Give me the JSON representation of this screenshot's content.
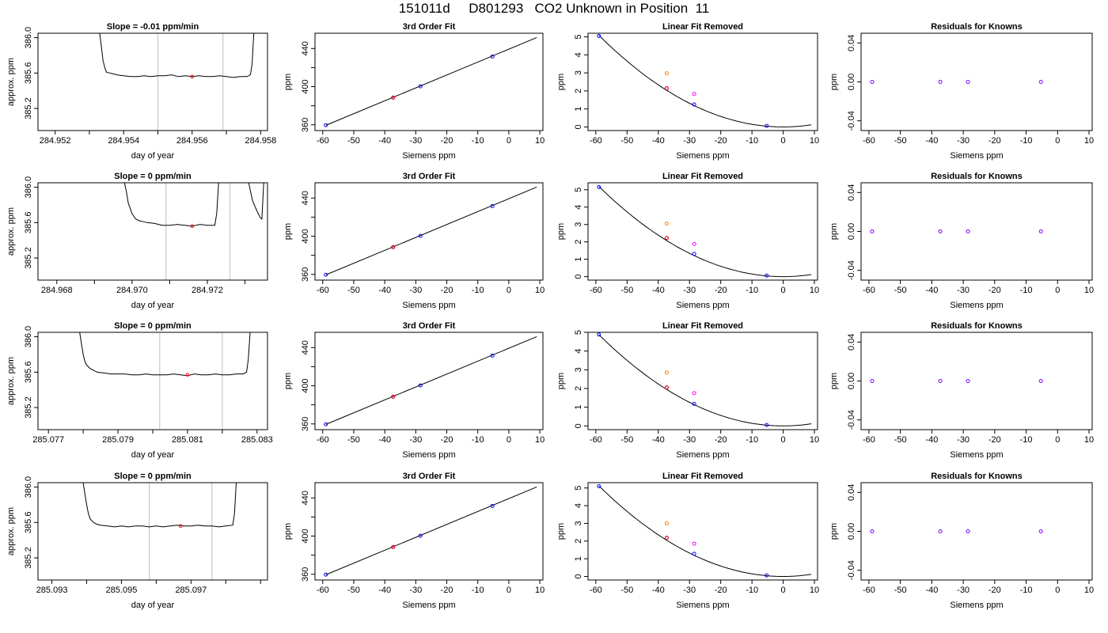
{
  "title": "151011d     D801293   CO2 Unknown in Position  11",
  "colors": {
    "known": "#0000ff",
    "unknown": "#ff0000",
    "orange": "#ff8000",
    "magenta": "#ff00ff",
    "residual": "#8000ff",
    "vline": "#c8c8c8"
  },
  "chart_data": [
    {
      "type": "line",
      "title": "Slope =  -0.01  ppm/min",
      "xlabel": "day of year",
      "ylabel": "approx. ppm",
      "xlim": [
        284.9515,
        284.9582
      ],
      "ylim": [
        384.95,
        386.05
      ],
      "xticks": [
        284.952,
        284.953,
        284.954,
        284.955,
        284.956,
        284.957,
        284.958
      ],
      "xtick_labels": [
        "284.952",
        "",
        "284.954",
        "",
        "284.956",
        "",
        "284.958"
      ],
      "yticks": [
        385.2,
        385.6,
        386.0
      ],
      "ytick_labels": [
        "385.2",
        "385.6",
        "386.0"
      ],
      "vlines": [
        284.955,
        284.9569
      ],
      "x": [
        284.9533,
        284.95335,
        284.9534,
        284.95345,
        284.9535,
        284.9536,
        284.9537,
        284.9538,
        284.954,
        284.9542,
        284.9544,
        284.9546,
        284.9548,
        284.955,
        284.9552,
        284.9554,
        284.9556,
        284.9558,
        284.956,
        284.9562,
        284.9564,
        284.9566,
        284.9568,
        284.957,
        284.9572,
        284.9574,
        284.9576,
        284.9577,
        284.95775,
        284.9578
      ],
      "y": [
        386.05,
        385.9,
        385.74,
        385.66,
        385.61,
        385.6,
        385.59,
        385.58,
        385.57,
        385.56,
        385.56,
        385.57,
        385.56,
        385.57,
        385.57,
        385.58,
        385.56,
        385.57,
        385.56,
        385.57,
        385.56,
        385.56,
        385.57,
        385.56,
        385.55,
        385.56,
        385.56,
        385.58,
        385.7,
        386.05
      ],
      "marker": {
        "x": 284.956,
        "y": 385.56
      }
    },
    {
      "type": "line",
      "title": "Slope =  0  ppm/min",
      "xlabel": "day of year",
      "ylabel": "approx. ppm",
      "xlim": [
        284.9675,
        284.9736
      ],
      "ylim": [
        384.95,
        386.05
      ],
      "xticks": [
        284.968,
        284.969,
        284.97,
        284.971,
        284.972,
        284.973
      ],
      "xtick_labels": [
        "284.968",
        "",
        "284.970",
        "",
        "284.972",
        ""
      ],
      "yticks": [
        385.2,
        385.6,
        386.0
      ],
      "ytick_labels": [
        "385.2",
        "385.6",
        "386.0"
      ],
      "vlines": [
        284.9709,
        284.9726
      ],
      "x": [
        284.9698,
        284.96985,
        284.9699,
        284.97,
        284.9701,
        284.9702,
        284.9703,
        284.9704,
        284.9706,
        284.9708,
        284.971,
        284.9712,
        284.9714,
        284.9716,
        284.9718,
        284.972,
        284.9722,
        284.97225,
        284.9723
      ],
      "y": [
        386.05,
        385.95,
        385.82,
        385.7,
        385.64,
        385.62,
        385.61,
        385.6,
        385.59,
        385.57,
        385.57,
        385.58,
        385.57,
        385.56,
        385.58,
        385.57,
        385.57,
        385.7,
        386.05
      ],
      "x2": [
        284.9731,
        284.97315,
        284.9732,
        284.9733,
        284.9734,
        284.97345,
        284.9735
      ],
      "y2": [
        386.05,
        385.95,
        385.85,
        385.75,
        385.66,
        385.64,
        386.05
      ],
      "marker": {
        "x": 284.9716,
        "y": 385.56
      }
    },
    {
      "type": "line",
      "title": "Slope =  0  ppm/min",
      "xlabel": "day of year",
      "ylabel": "approx. ppm",
      "xlim": [
        285.0767,
        285.0833
      ],
      "ylim": [
        384.95,
        386.05
      ],
      "xticks": [
        285.077,
        285.078,
        285.079,
        285.08,
        285.081,
        285.082,
        285.083
      ],
      "xtick_labels": [
        "285.077",
        "",
        "285.079",
        "",
        "285.081",
        "",
        "285.083"
      ],
      "yticks": [
        385.2,
        385.6,
        386.0
      ],
      "ytick_labels": [
        "385.2",
        "385.6",
        "386.0"
      ],
      "vlines": [
        285.0802,
        285.082
      ],
      "x": [
        285.0779,
        285.07795,
        285.078,
        285.07805,
        285.0781,
        285.0782,
        285.0783,
        285.0784,
        285.0786,
        285.0788,
        285.079,
        285.0792,
        285.0794,
        285.0796,
        285.0798,
        285.08,
        285.0802,
        285.0804,
        285.0806,
        285.0808,
        285.081,
        285.0812,
        285.0814,
        285.0816,
        285.0818,
        285.082,
        285.0822,
        285.0824,
        285.0826,
        285.0827,
        285.08275,
        285.0828
      ],
      "y": [
        386.05,
        385.92,
        385.8,
        385.72,
        385.68,
        385.64,
        385.62,
        385.6,
        385.59,
        385.58,
        385.58,
        385.58,
        385.57,
        385.57,
        385.58,
        385.57,
        385.57,
        385.57,
        385.58,
        385.57,
        385.56,
        385.58,
        385.57,
        385.57,
        385.58,
        385.57,
        385.57,
        385.58,
        385.58,
        385.6,
        385.75,
        386.05
      ],
      "marker": {
        "x": 285.081,
        "y": 385.57
      }
    },
    {
      "type": "line",
      "title": "Slope =  0  ppm/min",
      "xlabel": "day of year",
      "ylabel": "approx. ppm",
      "xlim": [
        285.0926,
        285.0992
      ],
      "ylim": [
        384.95,
        386.05
      ],
      "xticks": [
        285.093,
        285.094,
        285.095,
        285.096,
        285.097,
        285.098,
        285.099
      ],
      "xtick_labels": [
        "285.093",
        "",
        "285.095",
        "",
        "285.097",
        "",
        ""
      ],
      "yticks": [
        385.2,
        385.6,
        386.0
      ],
      "ytick_labels": [
        "385.2",
        "385.6",
        "386.0"
      ],
      "vlines": [
        285.0958,
        285.0976
      ],
      "x": [
        285.0939,
        285.09395,
        285.094,
        285.09405,
        285.0941,
        285.0942,
        285.0943,
        285.0944,
        285.0946,
        285.0948,
        285.095,
        285.0952,
        285.0954,
        285.0956,
        285.0958,
        285.096,
        285.0962,
        285.0964,
        285.0966,
        285.0968,
        285.097,
        285.0972,
        285.0974,
        285.0976,
        285.0978,
        285.098,
        285.0982,
        285.09825,
        285.0983
      ],
      "y": [
        386.05,
        385.92,
        385.8,
        385.7,
        385.64,
        385.6,
        385.58,
        385.57,
        385.56,
        385.55,
        385.56,
        385.55,
        385.56,
        385.56,
        385.55,
        385.56,
        385.55,
        385.56,
        385.57,
        385.56,
        385.56,
        385.57,
        385.56,
        385.56,
        385.55,
        385.56,
        385.57,
        385.7,
        386.05
      ],
      "marker": {
        "x": 285.0967,
        "y": 385.56
      }
    },
    {
      "type": "scatter",
      "title": "3rd Order Fit",
      "xlabel": "Siemens ppm",
      "ylabel": "ppm",
      "xlim": [
        -62.5,
        11
      ],
      "ylim": [
        354,
        456
      ],
      "xticks": [
        -60,
        -50,
        -40,
        -30,
        -20,
        -10,
        0,
        10
      ],
      "yticks": [
        360,
        380,
        400,
        420,
        440
      ],
      "ytick_labels": [
        "360",
        "",
        "400",
        "",
        "440"
      ],
      "fit_line": {
        "x": [
          -59,
          9
        ],
        "y": [
          359.5,
          451.5
        ]
      },
      "known_points": {
        "x": [
          -59,
          -37.3,
          -28.5,
          -5.3
        ],
        "y": [
          359.6,
          388.5,
          400.3,
          431.5
        ]
      },
      "unknown_point": {
        "x": -37.3,
        "y": 388.5
      }
    },
    {
      "type": "scatter",
      "title": "3rd Order Fit",
      "xlabel": "Siemens ppm",
      "ylabel": "ppm",
      "xlim": [
        -62.5,
        11
      ],
      "ylim": [
        354,
        456
      ],
      "xticks": [
        -60,
        -50,
        -40,
        -30,
        -20,
        -10,
        0,
        10
      ],
      "yticks": [
        360,
        380,
        400,
        420,
        440
      ],
      "ytick_labels": [
        "360",
        "",
        "400",
        "",
        "440"
      ],
      "fit_line": {
        "x": [
          -59,
          9
        ],
        "y": [
          359.5,
          451.5
        ]
      },
      "known_points": {
        "x": [
          -59,
          -37.3,
          -28.5,
          -5.3
        ],
        "y": [
          359.6,
          388.5,
          400.3,
          431.5
        ]
      },
      "unknown_point": {
        "x": -37.3,
        "y": 388.5
      }
    },
    {
      "type": "scatter",
      "title": "3rd Order Fit",
      "xlabel": "Siemens ppm",
      "ylabel": "ppm",
      "xlim": [
        -62.5,
        11
      ],
      "ylim": [
        354,
        456
      ],
      "xticks": [
        -60,
        -50,
        -40,
        -30,
        -20,
        -10,
        0,
        10
      ],
      "yticks": [
        360,
        380,
        400,
        420,
        440
      ],
      "ytick_labels": [
        "360",
        "",
        "400",
        "",
        "440"
      ],
      "fit_line": {
        "x": [
          -59,
          9
        ],
        "y": [
          359.5,
          451.5
        ]
      },
      "known_points": {
        "x": [
          -59,
          -37.3,
          -28.5,
          -5.3
        ],
        "y": [
          359.6,
          388.5,
          400.3,
          431.5
        ]
      },
      "unknown_point": {
        "x": -37.3,
        "y": 388.5
      }
    },
    {
      "type": "scatter",
      "title": "3rd Order Fit",
      "xlabel": "Siemens ppm",
      "ylabel": "ppm",
      "xlim": [
        -62.5,
        11
      ],
      "ylim": [
        354,
        456
      ],
      "xticks": [
        -60,
        -50,
        -40,
        -30,
        -20,
        -10,
        0,
        10
      ],
      "yticks": [
        360,
        380,
        400,
        420,
        440
      ],
      "ytick_labels": [
        "360",
        "",
        "400",
        "",
        "440"
      ],
      "fit_line": {
        "x": [
          -59,
          9
        ],
        "y": [
          359.5,
          451.5
        ]
      },
      "known_points": {
        "x": [
          -59,
          -37.3,
          -28.5,
          -5.3
        ],
        "y": [
          359.6,
          388.5,
          400.3,
          431.5
        ]
      },
      "unknown_point": {
        "x": -37.3,
        "y": 388.5
      }
    },
    {
      "type": "scatter",
      "title": "Linear Fit Removed",
      "xlabel": "Siemens ppm",
      "ylabel": "ppm",
      "xlim": [
        -62.5,
        11
      ],
      "ylim": [
        -0.2,
        5.2
      ],
      "xticks": [
        -60,
        -50,
        -40,
        -30,
        -20,
        -10,
        0,
        10
      ],
      "yticks": [
        0,
        1,
        2,
        3,
        4,
        5
      ],
      "curve": {
        "x0": 0,
        "y0": 0,
        "a": 0.00146
      },
      "known_points": {
        "x": [
          -59,
          -37.3,
          -28.5,
          -5.3
        ],
        "y": [
          5.05,
          2.15,
          1.25,
          0.06
        ]
      },
      "orange_point": {
        "x": -37.3,
        "y": 2.98
      },
      "magenta_point": {
        "x": -28.5,
        "y": 1.83
      },
      "unknown_point": {
        "x": -37.3,
        "y": 2.15
      }
    },
    {
      "type": "scatter",
      "title": "Linear Fit Removed",
      "xlabel": "Siemens ppm",
      "ylabel": "ppm",
      "xlim": [
        -62.5,
        11
      ],
      "ylim": [
        -0.2,
        5.4
      ],
      "xticks": [
        -60,
        -50,
        -40,
        -30,
        -20,
        -10,
        0,
        10
      ],
      "yticks": [
        0,
        1,
        2,
        3,
        4,
        5
      ],
      "curve": {
        "x0": 0,
        "y0": 0,
        "a": 0.00149
      },
      "known_points": {
        "x": [
          -59,
          -37.3,
          -28.5,
          -5.3
        ],
        "y": [
          5.15,
          2.22,
          1.31,
          0.06
        ]
      },
      "orange_point": {
        "x": -37.3,
        "y": 3.05
      },
      "magenta_point": {
        "x": -28.5,
        "y": 1.88
      },
      "unknown_point": {
        "x": -37.3,
        "y": 2.22
      }
    },
    {
      "type": "scatter",
      "title": "Linear Fit Removed",
      "xlabel": "Siemens ppm",
      "ylabel": "ppm",
      "xlim": [
        -62.5,
        11
      ],
      "ylim": [
        -0.2,
        5.0
      ],
      "xticks": [
        -60,
        -50,
        -40,
        -30,
        -20,
        -10,
        0,
        10
      ],
      "yticks": [
        0,
        1,
        2,
        3,
        4,
        5
      ],
      "curve": {
        "x0": 0,
        "y0": 0,
        "a": 0.0014
      },
      "known_points": {
        "x": [
          -59,
          -37.3,
          -28.5,
          -5.3
        ],
        "y": [
          4.88,
          2.05,
          1.18,
          0.05
        ]
      },
      "orange_point": {
        "x": -37.3,
        "y": 2.85
      },
      "magenta_point": {
        "x": -28.5,
        "y": 1.75
      },
      "unknown_point": {
        "x": -37.3,
        "y": 2.05
      }
    },
    {
      "type": "scatter",
      "title": "Linear Fit Removed",
      "xlabel": "Siemens ppm",
      "ylabel": "ppm",
      "xlim": [
        -62.5,
        11
      ],
      "ylim": [
        -0.2,
        5.3
      ],
      "xticks": [
        -60,
        -50,
        -40,
        -30,
        -20,
        -10,
        0,
        10
      ],
      "yticks": [
        0,
        1,
        2,
        3,
        4,
        5
      ],
      "curve": {
        "x0": 0,
        "y0": 0,
        "a": 0.00147
      },
      "known_points": {
        "x": [
          -59,
          -37.3,
          -28.5,
          -5.3
        ],
        "y": [
          5.1,
          2.18,
          1.28,
          0.06
        ]
      },
      "orange_point": {
        "x": -37.3,
        "y": 3.0
      },
      "magenta_point": {
        "x": -28.5,
        "y": 1.85
      },
      "unknown_point": {
        "x": -37.3,
        "y": 2.18
      }
    },
    {
      "type": "scatter",
      "title": "Residuals for Knowns",
      "xlabel": "Siemens ppm",
      "ylabel": "ppm",
      "xlim": [
        -62.5,
        11
      ],
      "ylim": [
        -0.05,
        0.05
      ],
      "xticks": [
        -60,
        -50,
        -40,
        -30,
        -20,
        -10,
        0,
        10
      ],
      "yticks": [
        -0.04,
        0.0,
        0.04
      ],
      "ytick_labels": [
        "-0.04",
        "0.00",
        "0.04"
      ],
      "points": {
        "x": [
          -59,
          -37.3,
          -28.5,
          -5.3
        ],
        "y": [
          0,
          0,
          0,
          0
        ]
      }
    },
    {
      "type": "scatter",
      "title": "Residuals for Knowns",
      "xlabel": "Siemens ppm",
      "ylabel": "ppm",
      "xlim": [
        -62.5,
        11
      ],
      "ylim": [
        -0.05,
        0.05
      ],
      "xticks": [
        -60,
        -50,
        -40,
        -30,
        -20,
        -10,
        0,
        10
      ],
      "yticks": [
        -0.04,
        0.0,
        0.04
      ],
      "ytick_labels": [
        "-0.04",
        "0.00",
        "0.04"
      ],
      "points": {
        "x": [
          -59,
          -37.3,
          -28.5,
          -5.3
        ],
        "y": [
          0,
          0,
          0,
          0
        ]
      }
    },
    {
      "type": "scatter",
      "title": "Residuals for Knowns",
      "xlabel": "Siemens ppm",
      "ylabel": "ppm",
      "xlim": [
        -62.5,
        11
      ],
      "ylim": [
        -0.05,
        0.05
      ],
      "xticks": [
        -60,
        -50,
        -40,
        -30,
        -20,
        -10,
        0,
        10
      ],
      "yticks": [
        -0.04,
        0.0,
        0.04
      ],
      "ytick_labels": [
        "-0.04",
        "0.00",
        "0.04"
      ],
      "points": {
        "x": [
          -59,
          -37.3,
          -28.5,
          -5.3
        ],
        "y": [
          0,
          0,
          0,
          0
        ]
      }
    },
    {
      "type": "scatter",
      "title": "Residuals for Knowns",
      "xlabel": "Siemens ppm",
      "ylabel": "ppm",
      "xlim": [
        -62.5,
        11
      ],
      "ylim": [
        -0.05,
        0.05
      ],
      "xticks": [
        -60,
        -50,
        -40,
        -30,
        -20,
        -10,
        0,
        10
      ],
      "yticks": [
        -0.04,
        0.0,
        0.04
      ],
      "ytick_labels": [
        "-0.04",
        "0.00",
        "0.04"
      ],
      "points": {
        "x": [
          -59,
          -37.3,
          -28.5,
          -5.3
        ],
        "y": [
          0,
          0,
          0,
          0
        ]
      }
    }
  ]
}
